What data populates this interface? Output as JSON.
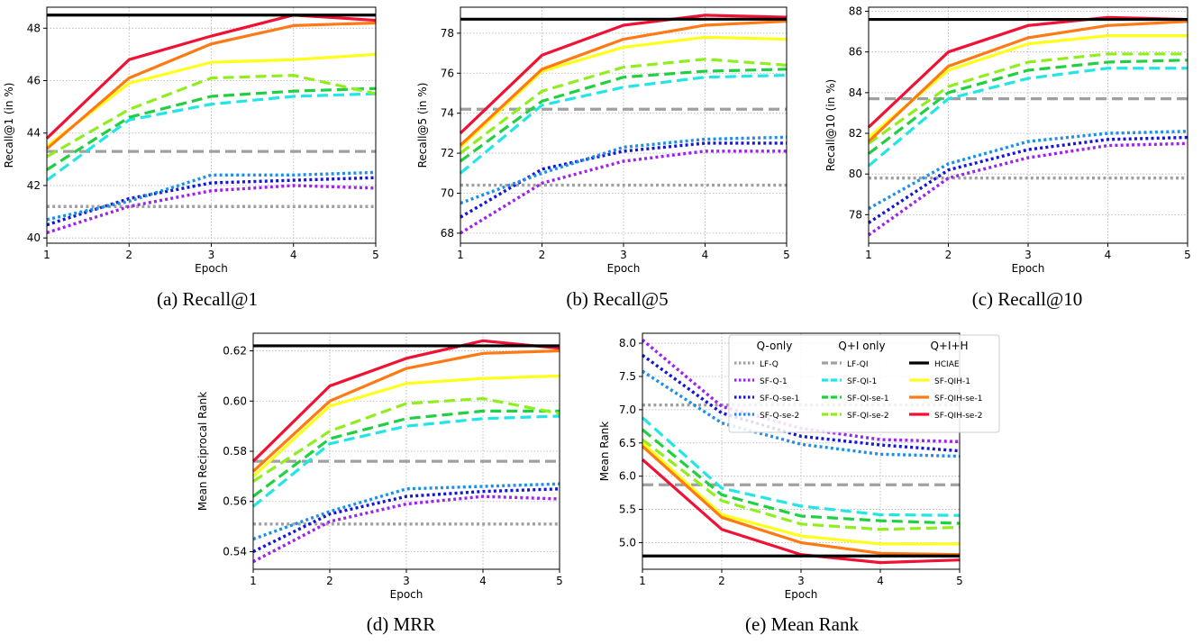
{
  "styles": {
    "LF-Q": {
      "color": "#a0a0a0",
      "dash": "dotted"
    },
    "SF-Q-1": {
      "color": "#a020f0",
      "dash": "dotted"
    },
    "SF-Q-se-1": {
      "color": "#1515d8",
      "dash": "dotted"
    },
    "SF-Q-se-2": {
      "color": "#1e8fe6",
      "dash": "dotted"
    },
    "LF-QI": {
      "color": "#a0a0a0",
      "dash": "dashed"
    },
    "SF-QI-1": {
      "color": "#22e6e6",
      "dash": "dashed"
    },
    "SF-QI-se-1": {
      "color": "#20d040",
      "dash": "dashed"
    },
    "SF-QI-se-2": {
      "color": "#90ee1e",
      "dash": "dashed"
    },
    "HCIAE": {
      "color": "#000000",
      "dash": "solid"
    },
    "SF-QIH-1": {
      "color": "#ffff1a",
      "dash": "solid"
    },
    "SF-QIH-se-1": {
      "color": "#ff7a14",
      "dash": "solid"
    },
    "SF-QIH-se-2": {
      "color": "#f01235",
      "dash": "solid"
    }
  },
  "legend": {
    "placement": "top-right",
    "groups": [
      {
        "title": "Q-only",
        "entries": [
          "LF-Q",
          "SF-Q-1",
          "SF-Q-se-1",
          "SF-Q-se-2"
        ]
      },
      {
        "title": "Q+I only",
        "entries": [
          "LF-QI",
          "SF-QI-1",
          "SF-QI-se-1",
          "SF-QI-se-2"
        ]
      },
      {
        "title": "Q+I+H",
        "entries": [
          "HCIAE",
          "SF-QIH-1",
          "SF-QIH-se-1",
          "SF-QIH-se-2"
        ]
      }
    ]
  },
  "chart_data": [
    {
      "type": "line",
      "caption": "(a) Recall@1",
      "xlabel": "Epoch",
      "ylabel": "Recall@1 (in %)",
      "x": [
        1,
        2,
        3,
        4,
        5
      ],
      "xticks": [
        "1",
        "2",
        "3",
        "4",
        "5"
      ],
      "ylim": [
        39.8,
        48.8
      ],
      "yticks": [
        40,
        42,
        44,
        46,
        48
      ],
      "ytick_labels": [
        "40",
        "42",
        "44",
        "46",
        "48"
      ],
      "grid": true,
      "series": [
        {
          "name": "LF-Q",
          "values": [
            41.2,
            41.2,
            41.2,
            41.2,
            41.2
          ]
        },
        {
          "name": "LF-QI",
          "values": [
            43.3,
            43.3,
            43.3,
            43.3,
            43.3
          ]
        },
        {
          "name": "SF-Q-1",
          "values": [
            40.2,
            41.2,
            41.8,
            42.0,
            41.9
          ]
        },
        {
          "name": "SF-Q-se-1",
          "values": [
            40.5,
            41.5,
            42.1,
            42.2,
            42.3
          ]
        },
        {
          "name": "SF-Q-se-2",
          "values": [
            40.7,
            41.4,
            42.4,
            42.4,
            42.5
          ]
        },
        {
          "name": "SF-QI-1",
          "values": [
            42.2,
            44.5,
            45.1,
            45.4,
            45.5
          ]
        },
        {
          "name": "SF-QI-se-1",
          "values": [
            42.6,
            44.6,
            45.4,
            45.6,
            45.7
          ]
        },
        {
          "name": "SF-QI-se-2",
          "values": [
            43.1,
            44.9,
            46.1,
            46.2,
            45.5
          ]
        },
        {
          "name": "SF-QIH-1",
          "values": [
            43.5,
            45.9,
            46.7,
            46.8,
            47.0
          ]
        },
        {
          "name": "SF-QIH-se-1",
          "values": [
            43.4,
            46.1,
            47.4,
            48.1,
            48.2
          ]
        },
        {
          "name": "SF-QIH-se-2",
          "values": [
            43.8,
            46.8,
            47.7,
            48.5,
            48.3
          ]
        },
        {
          "name": "HCIAE",
          "values": [
            48.5,
            48.5,
            48.5,
            48.5,
            48.5
          ]
        }
      ]
    },
    {
      "type": "line",
      "caption": "(b) Recall@5",
      "xlabel": "Epoch",
      "ylabel": "Recall@5 (in %)",
      "x": [
        1,
        2,
        3,
        4,
        5
      ],
      "xticks": [
        "1",
        "2",
        "3",
        "4",
        "5"
      ],
      "ylim": [
        67.5,
        79.3
      ],
      "yticks": [
        68,
        70,
        72,
        74,
        76,
        78
      ],
      "ytick_labels": [
        "68",
        "70",
        "72",
        "74",
        "76",
        "78"
      ],
      "grid": true,
      "series": [
        {
          "name": "LF-Q",
          "values": [
            70.4,
            70.4,
            70.4,
            70.4,
            70.4
          ]
        },
        {
          "name": "LF-QI",
          "values": [
            74.2,
            74.2,
            74.2,
            74.2,
            74.2
          ]
        },
        {
          "name": "SF-Q-1",
          "values": [
            68.0,
            70.5,
            71.6,
            72.1,
            72.1
          ]
        },
        {
          "name": "SF-Q-se-1",
          "values": [
            68.8,
            71.2,
            72.1,
            72.5,
            72.5
          ]
        },
        {
          "name": "SF-Q-se-2",
          "values": [
            69.5,
            71.0,
            72.3,
            72.7,
            72.8
          ]
        },
        {
          "name": "SF-QI-1",
          "values": [
            71.0,
            74.4,
            75.3,
            75.8,
            75.9
          ]
        },
        {
          "name": "SF-QI-se-1",
          "values": [
            71.6,
            74.6,
            75.8,
            76.1,
            76.2
          ]
        },
        {
          "name": "SF-QI-se-2",
          "values": [
            72.0,
            75.1,
            76.3,
            76.7,
            76.4
          ]
        },
        {
          "name": "SF-QIH-1",
          "values": [
            72.3,
            76.1,
            77.3,
            77.8,
            77.7
          ]
        },
        {
          "name": "SF-QIH-se-1",
          "values": [
            72.4,
            76.2,
            77.7,
            78.4,
            78.6
          ]
        },
        {
          "name": "SF-QIH-se-2",
          "values": [
            73.0,
            76.9,
            78.4,
            78.9,
            78.8
          ]
        },
        {
          "name": "HCIAE",
          "values": [
            78.7,
            78.7,
            78.7,
            78.7,
            78.7
          ]
        }
      ]
    },
    {
      "type": "line",
      "caption": "(c) Recall@10",
      "xlabel": "Epoch",
      "ylabel": "Recall@10 (in %)",
      "x": [
        1,
        2,
        3,
        4,
        5
      ],
      "xticks": [
        "1",
        "2",
        "3",
        "4",
        "5"
      ],
      "ylim": [
        76.6,
        88.2
      ],
      "yticks": [
        78,
        80,
        82,
        84,
        86,
        88
      ],
      "ytick_labels": [
        "78",
        "80",
        "82",
        "84",
        "86",
        "88"
      ],
      "grid": true,
      "series": [
        {
          "name": "LF-Q",
          "values": [
            79.8,
            79.8,
            79.8,
            79.8,
            79.8
          ]
        },
        {
          "name": "LF-QI",
          "values": [
            83.7,
            83.7,
            83.7,
            83.7,
            83.7
          ]
        },
        {
          "name": "SF-Q-1",
          "values": [
            77.0,
            79.8,
            80.8,
            81.4,
            81.5
          ]
        },
        {
          "name": "SF-Q-se-1",
          "values": [
            77.6,
            80.2,
            81.2,
            81.7,
            81.8
          ]
        },
        {
          "name": "SF-Q-se-2",
          "values": [
            78.3,
            80.5,
            81.6,
            82.0,
            82.1
          ]
        },
        {
          "name": "SF-QI-1",
          "values": [
            80.4,
            83.7,
            84.7,
            85.2,
            85.2
          ]
        },
        {
          "name": "SF-QI-se-1",
          "values": [
            81.0,
            84.0,
            85.1,
            85.5,
            85.6
          ]
        },
        {
          "name": "SF-QI-se-2",
          "values": [
            81.5,
            84.3,
            85.5,
            85.9,
            85.9
          ]
        },
        {
          "name": "SF-QIH-1",
          "values": [
            81.8,
            85.1,
            86.4,
            86.8,
            86.8
          ]
        },
        {
          "name": "SF-QIH-se-1",
          "values": [
            81.6,
            85.3,
            86.7,
            87.3,
            87.5
          ]
        },
        {
          "name": "SF-QIH-se-2",
          "values": [
            82.3,
            86.0,
            87.3,
            87.7,
            87.6
          ]
        },
        {
          "name": "HCIAE",
          "values": [
            87.6,
            87.6,
            87.6,
            87.6,
            87.6
          ]
        }
      ]
    },
    {
      "type": "line",
      "caption": "(d) MRR",
      "xlabel": "Epoch",
      "ylabel": "Mean Reciprocal Rank",
      "x": [
        1,
        2,
        3,
        4,
        5
      ],
      "xticks": [
        "1",
        "2",
        "3",
        "4",
        "5"
      ],
      "ylim": [
        0.533,
        0.627
      ],
      "yticks": [
        0.54,
        0.56,
        0.58,
        0.6,
        0.62
      ],
      "ytick_labels": [
        "0.54",
        "0.56",
        "0.58",
        "0.60",
        "0.62"
      ],
      "grid": true,
      "series": [
        {
          "name": "LF-Q",
          "values": [
            0.551,
            0.551,
            0.551,
            0.551,
            0.551
          ]
        },
        {
          "name": "LF-QI",
          "values": [
            0.576,
            0.576,
            0.576,
            0.576,
            0.576
          ]
        },
        {
          "name": "SF-Q-1",
          "values": [
            0.536,
            0.552,
            0.559,
            0.562,
            0.561
          ]
        },
        {
          "name": "SF-Q-se-1",
          "values": [
            0.54,
            0.555,
            0.562,
            0.564,
            0.565
          ]
        },
        {
          "name": "SF-Q-se-2",
          "values": [
            0.545,
            0.556,
            0.565,
            0.566,
            0.567
          ]
        },
        {
          "name": "SF-QI-1",
          "values": [
            0.558,
            0.583,
            0.59,
            0.593,
            0.594
          ]
        },
        {
          "name": "SF-QI-se-1",
          "values": [
            0.562,
            0.585,
            0.593,
            0.596,
            0.596
          ]
        },
        {
          "name": "SF-QI-se-2",
          "values": [
            0.568,
            0.588,
            0.599,
            0.601,
            0.595
          ]
        },
        {
          "name": "SF-QIH-1",
          "values": [
            0.57,
            0.598,
            0.607,
            0.609,
            0.61
          ]
        },
        {
          "name": "SF-QIH-se-1",
          "values": [
            0.572,
            0.6,
            0.613,
            0.619,
            0.62
          ]
        },
        {
          "name": "SF-QIH-se-2",
          "values": [
            0.576,
            0.606,
            0.617,
            0.624,
            0.621
          ]
        },
        {
          "name": "HCIAE",
          "values": [
            0.622,
            0.622,
            0.622,
            0.622,
            0.622
          ]
        }
      ]
    },
    {
      "type": "line",
      "caption": "(e) Mean Rank",
      "xlabel": "Epoch",
      "ylabel": "Mean Rank",
      "x": [
        1,
        2,
        3,
        4,
        5
      ],
      "xticks": [
        "1",
        "2",
        "3",
        "4",
        "5"
      ],
      "ylim": [
        4.6,
        8.15
      ],
      "yticks": [
        5.0,
        5.5,
        6.0,
        6.5,
        7.0,
        7.5,
        8.0
      ],
      "ytick_labels": [
        "5.0",
        "5.5",
        "6.0",
        "6.5",
        "7.0",
        "7.5",
        "8.0"
      ],
      "grid": true,
      "series": [
        {
          "name": "LF-Q",
          "values": [
            7.07,
            7.07,
            7.07,
            7.07,
            7.07
          ]
        },
        {
          "name": "LF-QI",
          "values": [
            5.87,
            5.87,
            5.87,
            5.87,
            5.87
          ]
        },
        {
          "name": "SF-Q-1",
          "values": [
            8.05,
            7.05,
            6.72,
            6.55,
            6.52
          ]
        },
        {
          "name": "SF-Q-se-1",
          "values": [
            7.82,
            6.95,
            6.6,
            6.47,
            6.38
          ]
        },
        {
          "name": "SF-Q-se-2",
          "values": [
            7.58,
            6.8,
            6.48,
            6.33,
            6.3
          ]
        },
        {
          "name": "SF-QI-1",
          "values": [
            6.88,
            5.82,
            5.55,
            5.42,
            5.41
          ]
        },
        {
          "name": "SF-QI-se-1",
          "values": [
            6.7,
            5.72,
            5.4,
            5.33,
            5.29
          ]
        },
        {
          "name": "SF-QI-se-2",
          "values": [
            6.55,
            5.63,
            5.28,
            5.2,
            5.23
          ]
        },
        {
          "name": "SF-QIH-1",
          "values": [
            6.5,
            5.42,
            5.1,
            4.98,
            4.98
          ]
        },
        {
          "name": "SF-QIH-se-1",
          "values": [
            6.45,
            5.38,
            5.0,
            4.84,
            4.82
          ]
        },
        {
          "name": "SF-QIH-se-2",
          "values": [
            6.25,
            5.2,
            4.82,
            4.7,
            4.74
          ]
        },
        {
          "name": "HCIAE",
          "values": [
            4.8,
            4.8,
            4.8,
            4.8,
            4.8
          ]
        }
      ]
    }
  ]
}
